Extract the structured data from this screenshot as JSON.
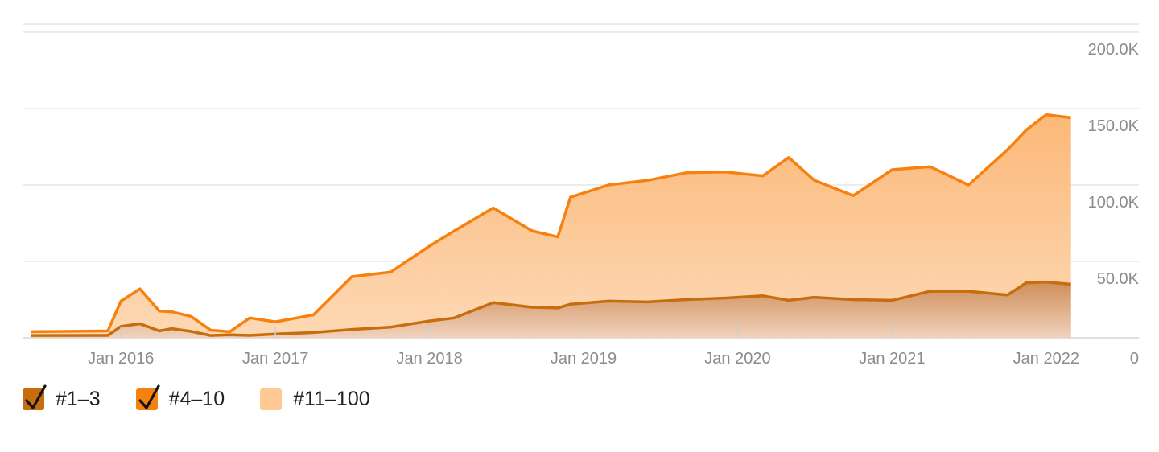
{
  "chart_data": {
    "type": "area",
    "stacked": true,
    "x_ticks": [
      "Jan 2016",
      "Jan 2017",
      "Jan 2018",
      "Jan 2019",
      "Jan 2020",
      "Jan 2021",
      "Jan 2022"
    ],
    "y_ticks": [
      "0",
      "50.0K",
      "100.0K",
      "150.0K",
      "200.0K"
    ],
    "ylim": [
      0,
      200000
    ],
    "xlim": [
      "2015-06-01",
      "2022-04-01"
    ],
    "y_axis_position": "right",
    "grid": true,
    "legend_position": "bottom-left",
    "series": [
      {
        "name": "#1–3",
        "color": "#c86d0e",
        "checked": true,
        "points": [
          [
            "2015-06-01",
            1500
          ],
          [
            "2015-12-01",
            1600
          ],
          [
            "2016-01-01",
            7500
          ],
          [
            "2016-02-15",
            9200
          ],
          [
            "2016-04-01",
            4500
          ],
          [
            "2016-05-01",
            6000
          ],
          [
            "2016-06-15",
            4200
          ],
          [
            "2016-08-01",
            1500
          ],
          [
            "2016-09-15",
            2000
          ],
          [
            "2016-11-01",
            1600
          ],
          [
            "2017-01-01",
            2500
          ],
          [
            "2017-04-01",
            3500
          ],
          [
            "2017-07-01",
            5500
          ],
          [
            "2017-10-01",
            7000
          ],
          [
            "2018-01-01",
            11000
          ],
          [
            "2018-03-01",
            13000
          ],
          [
            "2018-06-01",
            23000
          ],
          [
            "2018-09-01",
            20000
          ],
          [
            "2018-11-01",
            19500
          ],
          [
            "2018-12-01",
            22000
          ],
          [
            "2019-03-01",
            24000
          ],
          [
            "2019-06-01",
            23500
          ],
          [
            "2019-09-01",
            25000
          ],
          [
            "2019-12-01",
            26000
          ],
          [
            "2020-03-01",
            27500
          ],
          [
            "2020-05-01",
            24500
          ],
          [
            "2020-07-01",
            26500
          ],
          [
            "2020-10-01",
            25000
          ],
          [
            "2021-01-01",
            24500
          ],
          [
            "2021-04-01",
            30500
          ],
          [
            "2021-07-01",
            30500
          ],
          [
            "2021-10-01",
            28000
          ],
          [
            "2021-11-15",
            36000
          ],
          [
            "2022-01-01",
            36500
          ],
          [
            "2022-03-01",
            35000
          ]
        ]
      },
      {
        "name": "#4–10",
        "color": "#f7810e",
        "checked": true,
        "points": [
          [
            "2015-06-01",
            4000
          ],
          [
            "2015-12-01",
            4500
          ],
          [
            "2016-01-01",
            24000
          ],
          [
            "2016-02-15",
            32000
          ],
          [
            "2016-04-01",
            17500
          ],
          [
            "2016-05-01",
            17000
          ],
          [
            "2016-06-15",
            14000
          ],
          [
            "2016-08-01",
            5000
          ],
          [
            "2016-09-15",
            4000
          ],
          [
            "2016-11-01",
            13000
          ],
          [
            "2017-01-01",
            10500
          ],
          [
            "2017-04-01",
            15000
          ],
          [
            "2017-07-01",
            40000
          ],
          [
            "2017-10-01",
            43000
          ],
          [
            "2018-01-01",
            60000
          ],
          [
            "2018-03-01",
            70000
          ],
          [
            "2018-06-01",
            85000
          ],
          [
            "2018-09-01",
            70000
          ],
          [
            "2018-11-01",
            66000
          ],
          [
            "2018-12-01",
            92000
          ],
          [
            "2019-03-01",
            100000
          ],
          [
            "2019-06-01",
            103000
          ],
          [
            "2019-09-01",
            108000
          ],
          [
            "2019-12-01",
            108500
          ],
          [
            "2020-03-01",
            106000
          ],
          [
            "2020-05-01",
            118000
          ],
          [
            "2020-07-01",
            103000
          ],
          [
            "2020-10-01",
            93000
          ],
          [
            "2021-01-01",
            110000
          ],
          [
            "2021-04-01",
            112000
          ],
          [
            "2021-07-01",
            100000
          ],
          [
            "2021-10-01",
            123000
          ],
          [
            "2021-11-15",
            136000
          ],
          [
            "2022-01-01",
            146000
          ],
          [
            "2022-03-01",
            144000
          ]
        ]
      },
      {
        "name": "#11–100",
        "color": "#ffc994",
        "checked": false,
        "points": []
      }
    ]
  }
}
